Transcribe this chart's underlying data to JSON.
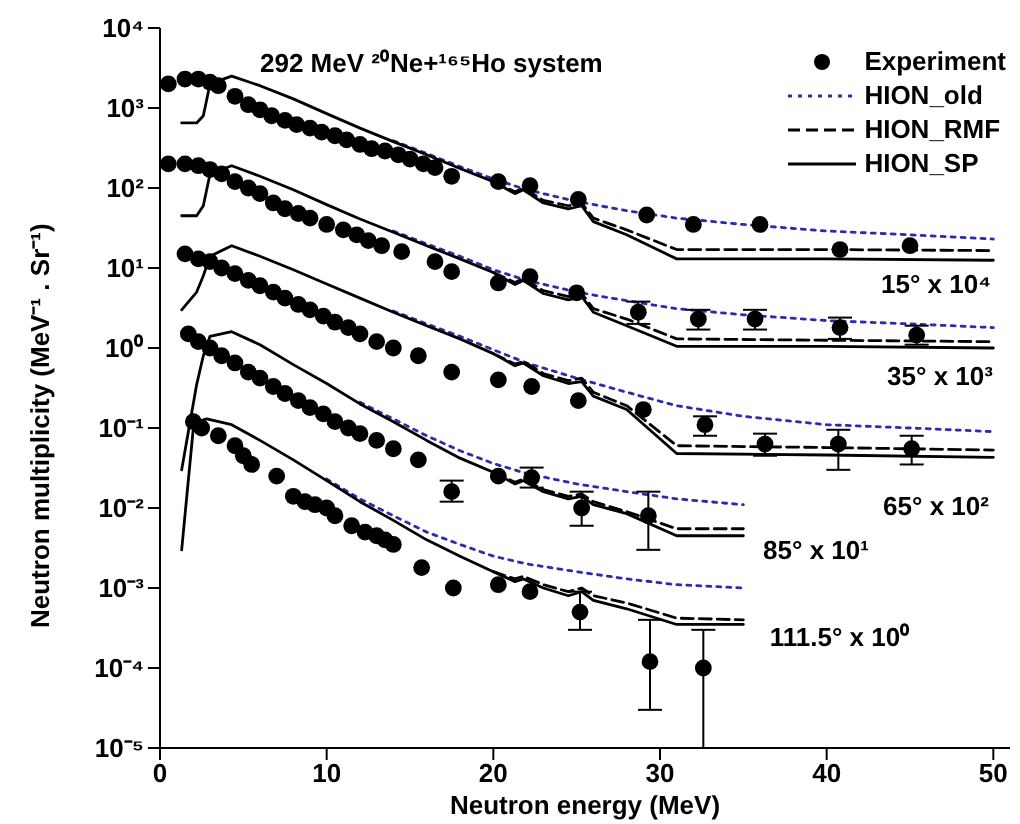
{
  "chart_data": {
    "type": "scatter",
    "title": "292 MeV ²⁰Ne+¹⁶⁵Ho system",
    "xlabel": "Neutron energy (MeV)",
    "ylabel": "Neutron multiplicity (MeV⁻¹ . Sr⁻¹)",
    "log": "y",
    "legend": "top right",
    "xlim": [
      0,
      51
    ],
    "xticks": [
      0,
      10,
      20,
      30,
      40,
      50
    ],
    "ylim": [
      1e-05,
      10000
    ],
    "yticks": [
      {
        "value": 1e-05,
        "label": "10⁻⁵"
      },
      {
        "value": 0.0001,
        "label": "10⁻⁴"
      },
      {
        "value": 0.001,
        "label": "10⁻³"
      },
      {
        "value": 0.01,
        "label": "10⁻²"
      },
      {
        "value": 0.1,
        "label": "10⁻¹"
      },
      {
        "value": 1,
        "label": "10⁰"
      },
      {
        "value": 10,
        "label": "10¹"
      },
      {
        "value": 100,
        "label": "10²"
      },
      {
        "value": 1000,
        "label": "10³"
      },
      {
        "value": 10000,
        "label": "10⁴"
      }
    ],
    "annotations": [
      "15° x 10⁴",
      "35° x 10³",
      "65° x 10²",
      "85° x 10¹",
      "111.5° x 10⁰"
    ],
    "series": [
      {
        "name": "Experiment",
        "color": "#000000",
        "marker": "circle",
        "x": [
          0.5,
          1.5,
          2.3,
          3,
          3.5,
          4.5,
          5.3,
          6,
          6.7,
          7.5,
          8.2,
          9,
          9.7,
          10.5,
          11.2,
          12,
          12.7,
          13.5,
          14.3,
          15,
          15.8,
          16.5,
          17.5,
          20.3,
          22.2,
          25.1,
          29.2,
          32,
          36,
          40.8,
          45
        ],
        "values": [
          2000,
          2300,
          2300,
          2100,
          1900,
          1400,
          1100,
          950,
          800,
          700,
          620,
          560,
          500,
          450,
          400,
          350,
          310,
          290,
          260,
          230,
          200,
          180,
          140,
          120,
          107,
          72,
          46,
          35,
          35,
          17,
          19
        ]
      },
      {
        "type": "line",
        "name": "HION_old",
        "color": "#2b2bb0",
        "line_style": "dotted",
        "marker": "none",
        "x": [
          14,
          16,
          18,
          20,
          22,
          25,
          28,
          31,
          35,
          40,
          45,
          50
        ],
        "values": [
          390,
          270,
          185,
          130,
          95,
          68,
          52,
          42,
          35,
          29,
          26,
          23
        ]
      },
      {
        "type": "line",
        "name": "HION_RMF",
        "color": "#000000",
        "line_style": "dashed",
        "marker": "none",
        "x": [
          20,
          21.3,
          21.8,
          23,
          24.5,
          25.3,
          26,
          28,
          31,
          40,
          50
        ],
        "values": [
          120,
          90,
          100,
          70,
          60,
          65,
          42,
          30,
          17,
          17,
          16.5
        ]
      },
      {
        "type": "line",
        "name": "HION_SP",
        "color": "#000000",
        "line_style": "solid",
        "marker": "none",
        "x": [
          1.3,
          2.2,
          2.6,
          3,
          4.3,
          6,
          8,
          10,
          12,
          14,
          16,
          18,
          20,
          21.3,
          21.8,
          23,
          24.5,
          25.3,
          26,
          28,
          31,
          40,
          50
        ],
        "values": [
          650,
          650,
          800,
          2000,
          2500,
          1900,
          1300,
          850,
          560,
          380,
          260,
          175,
          120,
          85,
          95,
          65,
          55,
          60,
          38,
          26,
          13,
          13,
          12.5
        ]
      },
      {
        "color": "#000000",
        "marker": "circle",
        "x": [
          0.5,
          1.5,
          2.3,
          3,
          3.7,
          4.5,
          5.3,
          6,
          6.8,
          7.5,
          8.3,
          9,
          10,
          11,
          11.8,
          12.5,
          13.3,
          14.5,
          16.5,
          17.5,
          20.3,
          22.2,
          25,
          28.7,
          32.3,
          35.7,
          40.8,
          45.4
        ],
        "values": [
          200,
          200,
          190,
          170,
          150,
          120,
          100,
          85,
          65,
          55,
          48,
          42,
          35,
          30,
          26,
          22,
          19,
          16,
          12,
          9,
          6.5,
          7.8,
          4.9,
          2.8,
          2.3,
          2.3,
          1.8,
          1.45
        ],
        "errors": [
          null,
          null,
          null,
          null,
          null,
          null,
          null,
          null,
          null,
          null,
          null,
          null,
          null,
          null,
          null,
          null,
          null,
          null,
          null,
          null,
          null,
          null,
          null,
          [
            2,
            3.8
          ],
          [
            1.7,
            3
          ],
          [
            1.7,
            3
          ],
          [
            1.3,
            2.4
          ],
          [
            1.1,
            1.9
          ]
        ]
      },
      {
        "type": "line",
        "color": "#2b2bb0",
        "line_style": "dotted",
        "marker": "none",
        "x": [
          14,
          16,
          18,
          20,
          22,
          25,
          28,
          31,
          35,
          40,
          45,
          50
        ],
        "values": [
          29,
          20,
          14,
          9.5,
          7,
          5,
          3.9,
          3.1,
          2.6,
          2.2,
          2,
          1.8
        ]
      },
      {
        "type": "line",
        "color": "#000000",
        "line_style": "dashed",
        "marker": "none",
        "x": [
          20,
          21.3,
          21.8,
          23,
          24.5,
          25.3,
          26,
          28,
          31,
          40,
          50
        ],
        "values": [
          8.8,
          6.6,
          7.4,
          5.2,
          4.4,
          4.8,
          3.1,
          2.3,
          1.3,
          1.25,
          1.2
        ]
      },
      {
        "type": "line",
        "color": "#000000",
        "line_style": "solid",
        "marker": "none",
        "x": [
          1.3,
          2.2,
          2.6,
          3,
          4.3,
          6,
          8,
          10,
          12,
          14,
          16,
          18,
          20,
          21.3,
          21.8,
          23,
          24.5,
          25.3,
          26,
          28,
          31,
          40,
          50
        ],
        "values": [
          45,
          45,
          60,
          150,
          190,
          140,
          95,
          62,
          41,
          28,
          19,
          13,
          8.8,
          6.2,
          7,
          4.8,
          4,
          4.4,
          2.8,
          1.9,
          1.05,
          1.05,
          1
        ]
      },
      {
        "color": "#000000",
        "marker": "circle",
        "x": [
          1.5,
          2.3,
          3,
          3.7,
          4.5,
          5.3,
          6,
          6.8,
          7.5,
          8.3,
          9,
          9.8,
          10.5,
          11.3,
          12,
          13,
          14,
          15.5,
          17.5,
          20.3,
          22.3,
          25.1,
          29,
          32.7,
          36.3,
          40.7,
          45.1
        ],
        "values": [
          15,
          13,
          12,
          10,
          8.5,
          7,
          6,
          5,
          4.2,
          3.5,
          3,
          2.5,
          2.1,
          1.8,
          1.5,
          1.2,
          1,
          0.8,
          0.5,
          0.4,
          0.33,
          0.22,
          0.17,
          0.11,
          0.063,
          0.063,
          0.055
        ],
        "errors": [
          null,
          null,
          null,
          null,
          null,
          null,
          null,
          null,
          null,
          null,
          null,
          null,
          null,
          null,
          null,
          null,
          null,
          null,
          null,
          null,
          null,
          null,
          null,
          [
            0.08,
            0.14
          ],
          [
            0.045,
            0.085
          ],
          [
            0.03,
            0.095
          ],
          [
            0.035,
            0.08
          ]
        ]
      },
      {
        "type": "line",
        "color": "#2b2bb0",
        "line_style": "dotted",
        "marker": "none",
        "x": [
          14,
          16,
          18,
          20,
          22,
          25,
          28,
          31,
          35,
          40,
          45,
          50
        ],
        "values": [
          2.9,
          2,
          1.4,
          0.95,
          0.65,
          0.42,
          0.28,
          0.19,
          0.14,
          0.11,
          0.1,
          0.09
        ]
      },
      {
        "type": "line",
        "color": "#000000",
        "line_style": "dashed",
        "marker": "none",
        "x": [
          20,
          21.3,
          21.8,
          23,
          24.5,
          25.3,
          26,
          28,
          31,
          40,
          50
        ],
        "values": [
          0.85,
          0.63,
          0.68,
          0.48,
          0.39,
          0.42,
          0.28,
          0.19,
          0.06,
          0.057,
          0.053
        ]
      },
      {
        "type": "line",
        "color": "#000000",
        "line_style": "solid",
        "marker": "none",
        "x": [
          1.3,
          2.2,
          2.6,
          3,
          4.3,
          6,
          8,
          10,
          12,
          14,
          16,
          18,
          20,
          21.3,
          21.8,
          23,
          24.5,
          25.3,
          26,
          28,
          31,
          40,
          50
        ],
        "values": [
          3,
          5,
          8,
          14,
          19,
          14,
          9.5,
          6.3,
          4.2,
          2.8,
          1.9,
          1.3,
          0.85,
          0.6,
          0.65,
          0.45,
          0.36,
          0.38,
          0.25,
          0.17,
          0.048,
          0.046,
          0.043
        ]
      },
      {
        "color": "#000000",
        "marker": "circle",
        "x": [
          1.7,
          2.3,
          3,
          3.7,
          4.5,
          5.3,
          6,
          6.8,
          7.5,
          8.3,
          9,
          9.8,
          10.5,
          11.3,
          12,
          13,
          14,
          15.5,
          17.5,
          20.3,
          22.3,
          25.3,
          29.3
        ],
        "values": [
          1.5,
          1.2,
          1,
          0.8,
          0.65,
          0.5,
          0.42,
          0.33,
          0.27,
          0.22,
          0.18,
          0.15,
          0.12,
          0.1,
          0.085,
          0.07,
          0.055,
          0.04,
          0.016,
          0.025,
          0.024,
          0.01,
          0.008
        ],
        "errors": [
          null,
          null,
          null,
          null,
          null,
          null,
          null,
          null,
          null,
          null,
          null,
          null,
          null,
          null,
          null,
          null,
          null,
          null,
          [
            0.012,
            0.022
          ],
          null,
          [
            0.018,
            0.032
          ],
          [
            0.006,
            0.016
          ],
          [
            0.003,
            0.016
          ]
        ]
      },
      {
        "type": "line",
        "color": "#2b2bb0",
        "line_style": "dotted",
        "marker": "none",
        "x": [
          12,
          14,
          16,
          18,
          20,
          22,
          25,
          28,
          31,
          35
        ],
        "values": [
          0.21,
          0.13,
          0.08,
          0.052,
          0.036,
          0.027,
          0.02,
          0.016,
          0.013,
          0.011
        ]
      },
      {
        "type": "line",
        "color": "#000000",
        "line_style": "dashed",
        "marker": "none",
        "x": [
          20,
          21.3,
          21.8,
          23,
          24.5,
          25.3,
          26,
          28,
          31,
          35
        ],
        "values": [
          0.028,
          0.021,
          0.023,
          0.017,
          0.014,
          0.015,
          0.012,
          0.009,
          0.0055,
          0.0055
        ]
      },
      {
        "type": "line",
        "color": "#000000",
        "line_style": "solid",
        "marker": "none",
        "x": [
          1.3,
          2.2,
          2.6,
          3,
          4.3,
          6,
          8,
          10,
          12,
          14,
          16,
          18,
          20,
          21.3,
          21.8,
          23,
          24.5,
          25.3,
          26,
          28,
          31,
          35
        ],
        "values": [
          0.03,
          0.35,
          0.8,
          1.4,
          1.6,
          1.1,
          0.62,
          0.36,
          0.2,
          0.12,
          0.07,
          0.042,
          0.028,
          0.02,
          0.022,
          0.016,
          0.013,
          0.014,
          0.011,
          0.0085,
          0.0045,
          0.0045
        ]
      },
      {
        "color": "#000000",
        "marker": "circle",
        "x": [
          2,
          2.5,
          3.5,
          4.5,
          5,
          5.5,
          7,
          8,
          8.7,
          9.3,
          10,
          10.5,
          11.5,
          12.3,
          13,
          13.5,
          14,
          15.7,
          17.6,
          20.3,
          22.2,
          25.2,
          29.4,
          32.6
        ],
        "values": [
          0.12,
          0.1,
          0.08,
          0.06,
          0.045,
          0.035,
          0.025,
          0.014,
          0.012,
          0.011,
          0.01,
          0.008,
          0.006,
          0.005,
          0.0045,
          0.004,
          0.0035,
          0.0018,
          0.001,
          0.0011,
          0.0009,
          0.0005,
          0.00012,
          0.0001
        ],
        "errors": [
          null,
          null,
          null,
          null,
          null,
          null,
          null,
          null,
          null,
          null,
          null,
          null,
          null,
          null,
          null,
          null,
          null,
          null,
          null,
          null,
          null,
          [
            0.0003,
            0.0009
          ],
          [
            3e-05,
            0.0004
          ],
          [
            1e-05,
            0.0003
          ]
        ]
      },
      {
        "type": "line",
        "color": "#2b2bb0",
        "line_style": "dotted",
        "marker": "none",
        "x": [
          10,
          12,
          14,
          16,
          18,
          20,
          22,
          25,
          28,
          31,
          35
        ],
        "values": [
          0.023,
          0.013,
          0.008,
          0.005,
          0.0035,
          0.0025,
          0.002,
          0.0016,
          0.0013,
          0.0011,
          0.001
        ]
      },
      {
        "type": "line",
        "color": "#000000",
        "line_style": "dashed",
        "marker": "none",
        "x": [
          20,
          21.3,
          21.8,
          23,
          24.5,
          25.3,
          26,
          28,
          31,
          35
        ],
        "values": [
          0.0016,
          0.0013,
          0.0014,
          0.0011,
          0.0009,
          0.001,
          0.0008,
          0.00065,
          0.00042,
          0.0004
        ]
      },
      {
        "type": "line",
        "color": "#000000",
        "line_style": "solid",
        "marker": "none",
        "x": [
          1.3,
          2,
          2.3,
          2.8,
          4.3,
          6,
          8,
          10,
          12,
          14,
          16,
          18,
          20,
          21.3,
          21.8,
          23,
          24.5,
          25.3,
          26,
          28,
          31,
          35
        ],
        "values": [
          0.003,
          0.1,
          0.12,
          0.13,
          0.11,
          0.07,
          0.04,
          0.022,
          0.012,
          0.007,
          0.004,
          0.0025,
          0.0016,
          0.0012,
          0.0013,
          0.001,
          0.0008,
          0.0009,
          0.0007,
          0.00055,
          0.00035,
          0.00035
        ]
      }
    ]
  }
}
